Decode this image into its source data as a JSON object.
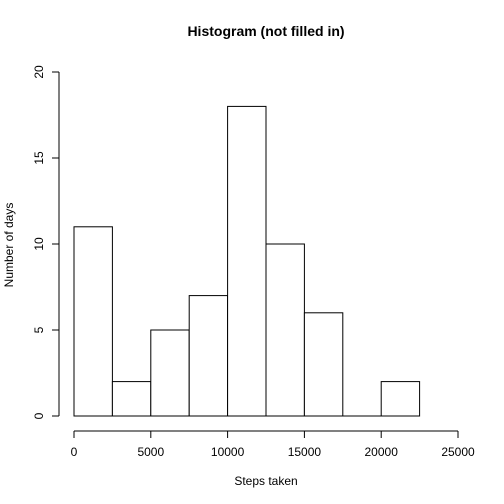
{
  "chart_data": {
    "type": "bar",
    "title": "Histogram (not filled in)",
    "xlabel": "Steps taken",
    "ylabel": "Number of days",
    "bins": [
      {
        "x0": 0,
        "x1": 2500,
        "count": 11
      },
      {
        "x0": 2500,
        "x1": 5000,
        "count": 2
      },
      {
        "x0": 5000,
        "x1": 7500,
        "count": 5
      },
      {
        "x0": 7500,
        "x1": 10000,
        "count": 7
      },
      {
        "x0": 10000,
        "x1": 12500,
        "count": 18
      },
      {
        "x0": 12500,
        "x1": 15000,
        "count": 10
      },
      {
        "x0": 15000,
        "x1": 17500,
        "count": 6
      },
      {
        "x0": 17500,
        "x1": 20000,
        "count": 0
      },
      {
        "x0": 20000,
        "x1": 22500,
        "count": 2
      }
    ],
    "xlim": [
      0,
      25000
    ],
    "ylim": [
      0,
      20
    ],
    "xticks": [
      0,
      5000,
      10000,
      15000,
      20000,
      25000
    ],
    "yticks": [
      0,
      5,
      10,
      15,
      20
    ],
    "grid": false,
    "fill_color": "#ffffff",
    "stroke_color": "#000000"
  }
}
